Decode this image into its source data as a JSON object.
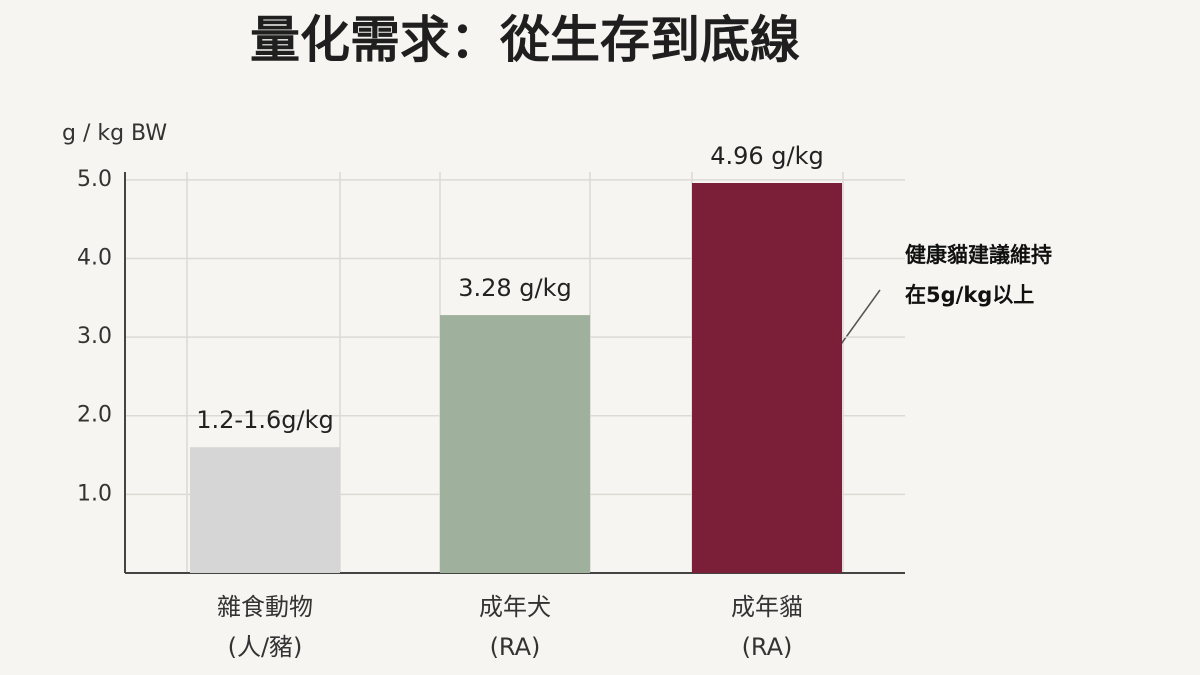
{
  "chart_data": {
    "type": "bar",
    "title": "量化需求：從生存到底線",
    "y_axis_label": "g / kg BW",
    "categories": [
      [
        "雜食動物",
        "(人/豬)"
      ],
      [
        "成年犬",
        "(RA)"
      ],
      [
        "成年貓",
        "(RA)"
      ]
    ],
    "values": [
      1.6,
      3.28,
      4.96
    ],
    "value_labels": [
      "1.2-1.6g/kg",
      "3.28 g/kg",
      "4.96 g/kg"
    ],
    "colors": [
      "#d6d6d6",
      "#9fb09c",
      "#7b1e38"
    ],
    "ylim": [
      0,
      5.1
    ],
    "yticks": [
      {
        "value": 1,
        "label": "1.0"
      },
      {
        "value": 2,
        "label": "2.0"
      },
      {
        "value": 3,
        "label": "3.0"
      },
      {
        "value": 4,
        "label": "4.0"
      },
      {
        "value": 5,
        "label": "5.0"
      }
    ],
    "grid": true,
    "annotation": [
      "健康貓建議維持",
      "在5g/kg以上"
    ]
  }
}
